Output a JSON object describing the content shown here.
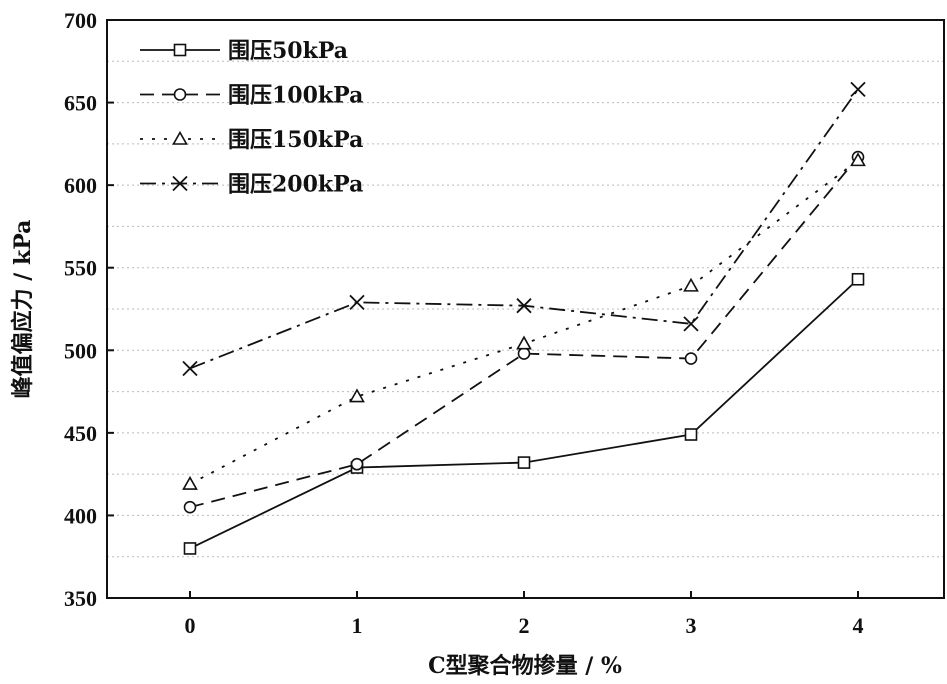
{
  "chart_data": {
    "type": "line",
    "title": "",
    "xlabel": "C型聚合物掺量 / %",
    "ylabel": "峰值偏应力 / kPa",
    "x": [
      0,
      1,
      2,
      3,
      4
    ],
    "x_ticks": [
      "0",
      "1",
      "2",
      "3",
      "4"
    ],
    "xlim": [
      -1.1,
      4.5
    ],
    "ylim": [
      350,
      700
    ],
    "y_ticks": [
      "350",
      "400",
      "450",
      "500",
      "550",
      "600",
      "650",
      "700"
    ],
    "grid": "horizontal dotted minor gridlines",
    "legend_position": "top-left",
    "series": [
      {
        "name": "围压50kPa",
        "marker": "square",
        "dash": "solid",
        "values": [
          380,
          429,
          432,
          449,
          543
        ]
      },
      {
        "name": "围压100kPa",
        "marker": "circle",
        "dash": "dashed",
        "values": [
          405,
          431,
          498,
          495,
          617
        ]
      },
      {
        "name": "围压150kPa",
        "marker": "triangle",
        "dash": "dotted",
        "values": [
          419,
          472,
          504,
          539,
          615
        ]
      },
      {
        "name": "围压200kPa",
        "marker": "x",
        "dash": "dashdot",
        "values": [
          489,
          529,
          527,
          516,
          658
        ]
      }
    ]
  }
}
